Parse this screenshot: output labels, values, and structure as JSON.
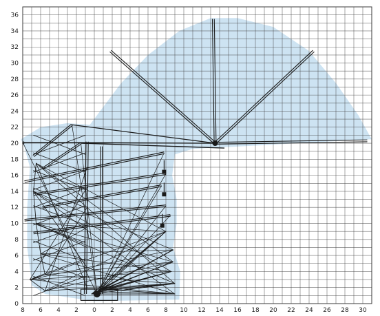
{
  "diagram": {
    "grid": {
      "x_range": [
        -8,
        31
      ],
      "y_range": [
        0,
        37
      ],
      "x_tick_labels": [
        "8",
        "6",
        "4",
        "2",
        "0",
        "2",
        "4",
        "6",
        "8",
        "10",
        "12",
        "14",
        "16",
        "18",
        "20",
        "22",
        "24",
        "26",
        "28",
        "30"
      ],
      "y_tick_labels": [
        "0",
        "2",
        "4",
        "6",
        "8",
        "10",
        "12",
        "14",
        "16",
        "18",
        "20",
        "22",
        "24",
        "26",
        "28",
        "30",
        "32",
        "34",
        "36"
      ],
      "grid_color": "#3a3a3a"
    },
    "envelope": {
      "fill_color": "#cde3f2",
      "outline": [
        [
          -8.2,
          20.5
        ],
        [
          -6,
          22
        ],
        [
          -3,
          22.5
        ],
        [
          -0.5,
          22.3
        ],
        [
          3,
          27.5
        ],
        [
          6,
          31
        ],
        [
          9.5,
          34
        ],
        [
          13,
          35.6
        ],
        [
          16,
          35.6
        ],
        [
          20,
          34.5
        ],
        [
          24,
          31.5
        ],
        [
          27,
          27.5
        ],
        [
          29.5,
          23.5
        ],
        [
          31,
          20.5
        ],
        [
          14.5,
          19.5
        ],
        [
          11,
          19.3
        ],
        [
          9,
          18.6
        ],
        [
          8.7,
          16
        ],
        [
          9.2,
          13
        ],
        [
          9.2,
          10
        ],
        [
          8.8,
          7
        ],
        [
          9.6,
          4
        ],
        [
          9.5,
          0.5
        ],
        [
          0,
          0.3
        ],
        [
          -5.5,
          1.2
        ],
        [
          -7,
          2.3
        ],
        [
          -7.2,
          4.5
        ],
        [
          -7.5,
          7
        ],
        [
          -7.5,
          12
        ],
        [
          -7.2,
          17
        ],
        [
          -7.8,
          19.5
        ]
      ]
    },
    "crane": {
      "line_color": "#1a1a1a",
      "pivot": [
        13.5,
        20
      ],
      "boom_tips": [
        [
          1.8,
          31.5
        ],
        [
          13.3,
          35.5
        ],
        [
          24.5,
          31.5
        ],
        [
          30.5,
          20.3
        ]
      ],
      "arm_tips": [
        [
          -8,
          20.1
        ],
        [
          -2.5,
          22.3
        ],
        [
          -1.5,
          20
        ],
        [
          7.8,
          18.8
        ],
        [
          8,
          16.2
        ],
        [
          7.5,
          14.7
        ],
        [
          8,
          12.2
        ],
        [
          8.5,
          11
        ]
      ],
      "low_fan_tips": [
        [
          8,
          9
        ],
        [
          8.8,
          6.7
        ],
        [
          8.8,
          5.2
        ],
        [
          8.6,
          4
        ],
        [
          9,
          2.5
        ],
        [
          9,
          1.2
        ]
      ],
      "left_base": [
        [
          -6.5,
          17.5
        ],
        [
          -6.8,
          14
        ],
        [
          -6.5,
          10
        ],
        [
          -6,
          6.2
        ],
        [
          -5.5,
          3.6
        ],
        [
          -7.2,
          3.0
        ],
        [
          -5.5,
          1.6
        ]
      ],
      "base_point": [
        0.3,
        1.2
      ],
      "hooks": [
        [
          7.8,
          17.2
        ],
        [
          7.8,
          14.4
        ],
        [
          7.6,
          10.5
        ]
      ]
    }
  }
}
